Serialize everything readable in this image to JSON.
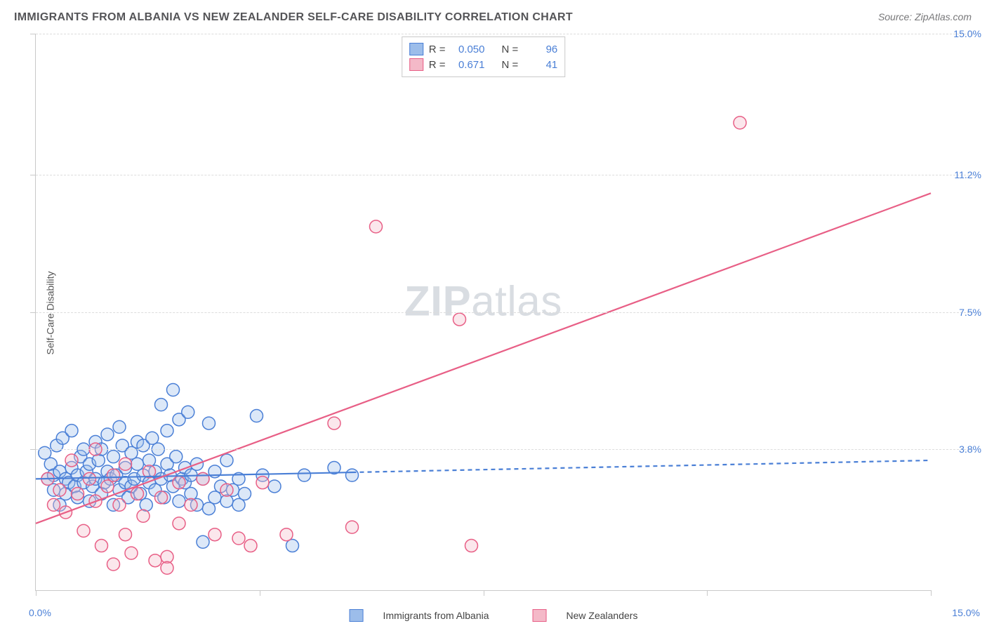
{
  "title": "IMMIGRANTS FROM ALBANIA VS NEW ZEALANDER SELF-CARE DISABILITY CORRELATION CHART",
  "source_label": "Source: ZipAtlas.com",
  "ylabel": "Self-Care Disability",
  "watermark": {
    "bold": "ZIP",
    "rest": "atlas"
  },
  "chart": {
    "type": "scatter",
    "background_color": "#ffffff",
    "grid_color": "#dcdcdc",
    "axis_color": "#c9c9c9",
    "tick_label_color": "#4a7fd6",
    "xlim": [
      0,
      15.0
    ],
    "ylim": [
      0,
      15.0
    ],
    "x_ticks": [
      0.0,
      3.75,
      7.5,
      11.25,
      15.0
    ],
    "y_gridlines": [
      3.8,
      7.5,
      11.2,
      15.0
    ],
    "origin_label": "0.0%",
    "max_x_label": "15.0%",
    "ytick_labels": [
      "3.8%",
      "7.5%",
      "11.2%",
      "15.0%"
    ],
    "marker_radius": 9,
    "marker_stroke_width": 1.5,
    "marker_fill_opacity": 0.35,
    "trend_line_width": 2.2,
    "trend_dash": "6,5",
    "series": [
      {
        "id": "albania",
        "label": "Immigrants from Albania",
        "color_fill": "#9cbdea",
        "color_stroke": "#4a7fd6",
        "R": "0.050",
        "N": "96",
        "trend": {
          "y_at_x0": 3.0,
          "y_at_xmax": 3.5,
          "solid_until_x": 5.3
        },
        "points": [
          [
            0.15,
            3.7
          ],
          [
            0.2,
            3.0
          ],
          [
            0.25,
            3.4
          ],
          [
            0.3,
            2.7
          ],
          [
            0.3,
            3.1
          ],
          [
            0.35,
            3.9
          ],
          [
            0.4,
            2.3
          ],
          [
            0.4,
            3.2
          ],
          [
            0.45,
            4.1
          ],
          [
            0.5,
            3.0
          ],
          [
            0.5,
            2.6
          ],
          [
            0.55,
            2.9
          ],
          [
            0.6,
            3.3
          ],
          [
            0.6,
            4.3
          ],
          [
            0.65,
            2.8
          ],
          [
            0.7,
            2.5
          ],
          [
            0.7,
            3.1
          ],
          [
            0.75,
            3.6
          ],
          [
            0.8,
            2.9
          ],
          [
            0.8,
            3.8
          ],
          [
            0.85,
            3.2
          ],
          [
            0.9,
            2.4
          ],
          [
            0.9,
            3.4
          ],
          [
            0.95,
            2.8
          ],
          [
            1.0,
            3.0
          ],
          [
            1.0,
            4.0
          ],
          [
            1.05,
            3.5
          ],
          [
            1.1,
            2.6
          ],
          [
            1.1,
            3.8
          ],
          [
            1.15,
            2.9
          ],
          [
            1.2,
            3.2
          ],
          [
            1.2,
            4.2
          ],
          [
            1.25,
            3.0
          ],
          [
            1.3,
            2.3
          ],
          [
            1.3,
            3.6
          ],
          [
            1.35,
            3.1
          ],
          [
            1.4,
            4.4
          ],
          [
            1.4,
            2.7
          ],
          [
            1.45,
            3.9
          ],
          [
            1.5,
            2.9
          ],
          [
            1.5,
            3.3
          ],
          [
            1.55,
            2.5
          ],
          [
            1.6,
            3.7
          ],
          [
            1.6,
            2.8
          ],
          [
            1.65,
            3.0
          ],
          [
            1.7,
            4.0
          ],
          [
            1.7,
            3.4
          ],
          [
            1.75,
            2.6
          ],
          [
            1.8,
            3.1
          ],
          [
            1.8,
            3.9
          ],
          [
            1.85,
            2.3
          ],
          [
            1.9,
            3.5
          ],
          [
            1.9,
            2.9
          ],
          [
            1.95,
            4.1
          ],
          [
            2.0,
            3.2
          ],
          [
            2.0,
            2.7
          ],
          [
            2.05,
            3.8
          ],
          [
            2.1,
            3.0
          ],
          [
            2.1,
            5.0
          ],
          [
            2.15,
            2.5
          ],
          [
            2.2,
            3.4
          ],
          [
            2.2,
            4.3
          ],
          [
            2.25,
            3.1
          ],
          [
            2.3,
            2.8
          ],
          [
            2.3,
            5.4
          ],
          [
            2.35,
            3.6
          ],
          [
            2.4,
            2.4
          ],
          [
            2.4,
            4.6
          ],
          [
            2.45,
            3.0
          ],
          [
            2.5,
            3.3
          ],
          [
            2.5,
            2.9
          ],
          [
            2.55,
            4.8
          ],
          [
            2.6,
            3.1
          ],
          [
            2.6,
            2.6
          ],
          [
            2.7,
            2.3
          ],
          [
            2.7,
            3.4
          ],
          [
            2.8,
            1.3
          ],
          [
            2.8,
            3.0
          ],
          [
            2.9,
            2.2
          ],
          [
            2.9,
            4.5
          ],
          [
            3.0,
            3.2
          ],
          [
            3.0,
            2.5
          ],
          [
            3.1,
            2.8
          ],
          [
            3.2,
            2.4
          ],
          [
            3.2,
            3.5
          ],
          [
            3.3,
            2.7
          ],
          [
            3.4,
            3.0
          ],
          [
            3.4,
            2.3
          ],
          [
            3.5,
            2.6
          ],
          [
            3.7,
            4.7
          ],
          [
            3.8,
            3.1
          ],
          [
            4.0,
            2.8
          ],
          [
            4.3,
            1.2
          ],
          [
            4.5,
            3.1
          ],
          [
            5.0,
            3.3
          ],
          [
            5.3,
            3.1
          ]
        ]
      },
      {
        "id": "nz",
        "label": "New Zealanders",
        "color_fill": "#f4b9c8",
        "color_stroke": "#e85f86",
        "R": "0.671",
        "N": "41",
        "trend": {
          "y_at_x0": 1.8,
          "y_at_xmax": 10.7,
          "solid_until_x": 15.0
        },
        "points": [
          [
            0.2,
            3.0
          ],
          [
            0.3,
            2.3
          ],
          [
            0.4,
            2.7
          ],
          [
            0.5,
            2.1
          ],
          [
            0.6,
            3.5
          ],
          [
            0.7,
            2.6
          ],
          [
            0.8,
            1.6
          ],
          [
            0.9,
            3.0
          ],
          [
            1.0,
            3.8
          ],
          [
            1.0,
            2.4
          ],
          [
            1.1,
            1.2
          ],
          [
            1.2,
            2.8
          ],
          [
            1.3,
            3.1
          ],
          [
            1.3,
            0.7
          ],
          [
            1.4,
            2.3
          ],
          [
            1.5,
            1.5
          ],
          [
            1.5,
            3.4
          ],
          [
            1.6,
            1.0
          ],
          [
            1.7,
            2.6
          ],
          [
            1.8,
            2.0
          ],
          [
            1.9,
            3.2
          ],
          [
            2.0,
            0.8
          ],
          [
            2.1,
            2.5
          ],
          [
            2.2,
            0.9
          ],
          [
            2.2,
            0.6
          ],
          [
            2.4,
            2.9
          ],
          [
            2.4,
            1.8
          ],
          [
            2.6,
            2.3
          ],
          [
            2.8,
            3.0
          ],
          [
            3.0,
            1.5
          ],
          [
            3.2,
            2.7
          ],
          [
            3.4,
            1.4
          ],
          [
            3.6,
            1.2
          ],
          [
            3.8,
            2.9
          ],
          [
            4.2,
            1.5
          ],
          [
            5.0,
            4.5
          ],
          [
            5.3,
            1.7
          ],
          [
            5.7,
            9.8
          ],
          [
            7.1,
            7.3
          ],
          [
            7.3,
            1.2
          ],
          [
            11.8,
            12.6
          ]
        ]
      }
    ]
  },
  "statbox": {
    "r_prefix": "R =",
    "n_prefix": "N ="
  },
  "legend": {
    "series_a": "Immigrants from Albania",
    "series_b": "New Zealanders"
  }
}
